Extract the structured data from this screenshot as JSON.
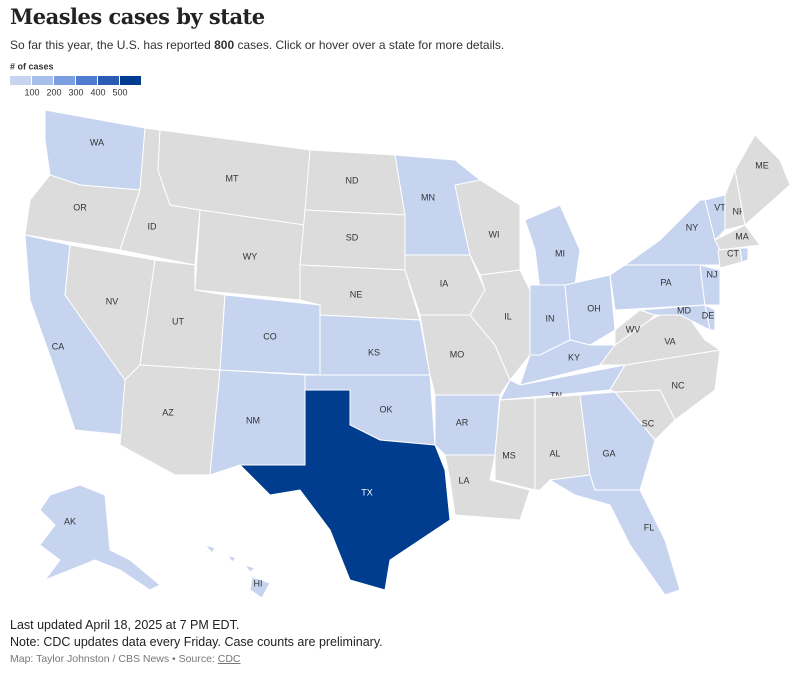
{
  "header": {
    "title": "Measles cases by state",
    "subtitle": [
      "So far this year, the U.S. has reported ",
      "800",
      " cases. Click or hover over a state for more details."
    ]
  },
  "legend": {
    "title": "# of cases",
    "colors": [
      "#c6d4f0",
      "#a8bfec",
      "#7a9edf",
      "#4f7ccf",
      "#2a5bb5",
      "#003d8f"
    ],
    "labels": [
      100,
      200,
      300,
      400,
      500
    ]
  },
  "gray": "#dcdcdc",
  "states": [
    {
      "label": "WA",
      "color": "#c6d4f0"
    },
    {
      "label": "OR",
      "color": "#dcdcdc"
    },
    {
      "label": "CA",
      "color": "#c6d4f0"
    },
    {
      "label": "NV",
      "color": "#dcdcdc"
    },
    {
      "label": "ID",
      "color": "#dcdcdc"
    },
    {
      "label": "MT",
      "color": "#dcdcdc"
    },
    {
      "label": "WY",
      "color": "#dcdcdc"
    },
    {
      "label": "UT",
      "color": "#dcdcdc"
    },
    {
      "label": "AZ",
      "color": "#dcdcdc"
    },
    {
      "label": "CO",
      "color": "#c6d4f0"
    },
    {
      "label": "NM",
      "color": "#c6d4f0"
    },
    {
      "label": "ND",
      "color": "#dcdcdc"
    },
    {
      "label": "SD",
      "color": "#dcdcdc"
    },
    {
      "label": "NE",
      "color": "#dcdcdc"
    },
    {
      "label": "KS",
      "color": "#c6d4f0"
    },
    {
      "label": "OK",
      "color": "#c6d4f0"
    },
    {
      "label": "TX",
      "color": "#003d8f"
    },
    {
      "label": "MN",
      "color": "#c6d4f0"
    },
    {
      "label": "IA",
      "color": "#dcdcdc"
    },
    {
      "label": "MO",
      "color": "#dcdcdc"
    },
    {
      "label": "AR",
      "color": "#c6d4f0"
    },
    {
      "label": "LA",
      "color": "#dcdcdc"
    },
    {
      "label": "WI",
      "color": "#dcdcdc"
    },
    {
      "label": "IL",
      "color": "#dcdcdc"
    },
    {
      "label": "MI",
      "color": "#c6d4f0"
    },
    {
      "label": "IN",
      "color": "#c6d4f0"
    },
    {
      "label": "OH",
      "color": "#c6d4f0"
    },
    {
      "label": "KY",
      "color": "#c6d4f0"
    },
    {
      "label": "TN",
      "color": "#c6d4f0"
    },
    {
      "label": "MS",
      "color": "#dcdcdc"
    },
    {
      "label": "AL",
      "color": "#dcdcdc"
    },
    {
      "label": "GA",
      "color": "#c6d4f0"
    },
    {
      "label": "FL",
      "color": "#c6d4f0"
    },
    {
      "label": "SC",
      "color": "#dcdcdc"
    },
    {
      "label": "NC",
      "color": "#dcdcdc"
    },
    {
      "label": "VA",
      "color": "#dcdcdc"
    },
    {
      "label": "WV",
      "color": "#dcdcdc"
    },
    {
      "label": "PA",
      "color": "#c6d4f0"
    },
    {
      "label": "NY",
      "color": "#c6d4f0"
    },
    {
      "label": "NJ",
      "color": "#c6d4f0"
    },
    {
      "label": "MD",
      "color": "#c6d4f0"
    },
    {
      "label": "DE",
      "color": "#c6d4f0"
    },
    {
      "label": "VT",
      "color": "#c6d4f0"
    },
    {
      "label": "NH",
      "color": "#dcdcdc"
    },
    {
      "label": "ME",
      "color": "#dcdcdc"
    },
    {
      "label": "MA",
      "color": "#dcdcdc"
    },
    {
      "label": "CT",
      "color": "#dcdcdc"
    },
    {
      "label": null,
      "color": "#c6d4f0"
    },
    {
      "label": "AK",
      "color": "#c6d4f0"
    },
    {
      "label": "HI",
      "color": "#c6d4f0"
    }
  ],
  "footer": {
    "updated": "Last updated April 18, 2025 at 7 PM EDT.",
    "note": "Note: CDC updates data every Friday. Case counts are preliminary.",
    "credit": "Map: Taylor Johnston / CBS News • Source: ",
    "source": "CDC"
  }
}
